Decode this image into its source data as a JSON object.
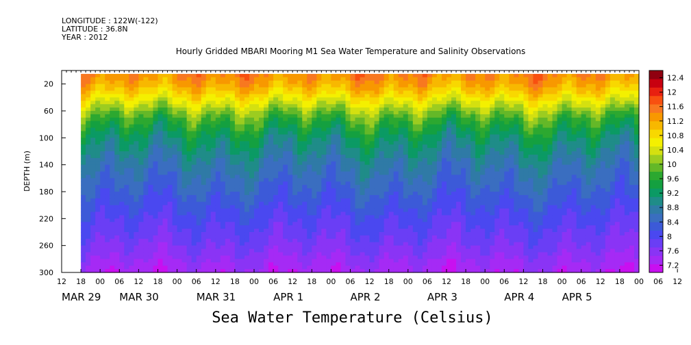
{
  "header": {
    "longitude": "LONGITUDE : 122W(-122)",
    "latitude": "LATITUDE : 36.8N",
    "year": "YEAR : 2012"
  },
  "chart_data": {
    "type": "heatmap",
    "title": "Hourly Gridded MBARI Mooring M1 Sea Water Temperature and Salinity Observations",
    "xlabel": "Sea Water Temperature (Celsius)",
    "ylabel": "DEPTH (m)",
    "ylim": [
      300,
      0
    ],
    "y_ticks": [
      20,
      60,
      100,
      140,
      180,
      220,
      260,
      300
    ],
    "x_range_hours": [
      0,
      180
    ],
    "x_hour_ticks": [
      "12",
      "18",
      "00",
      "06",
      "12",
      "18",
      "00",
      "06",
      "12",
      "18",
      "00",
      "06",
      "12",
      "18",
      "00",
      "06",
      "12",
      "18",
      "00",
      "06",
      "12",
      "18",
      "00",
      "06",
      "12",
      "18",
      "00",
      "06",
      "12",
      "18",
      "00",
      "06",
      "12"
    ],
    "x_day_labels": [
      {
        "label": "MAR 29",
        "hour": 0
      },
      {
        "label": "MAR 30",
        "hour": 18
      },
      {
        "label": "MAR 31",
        "hour": 42
      },
      {
        "label": "APR  1",
        "hour": 66
      },
      {
        "label": "APR  2",
        "hour": 90
      },
      {
        "label": "APR  3",
        "hour": 114
      },
      {
        "label": "APR  4",
        "hour": 138
      },
      {
        "label": "APR  5",
        "hour": 156
      }
    ],
    "data_start_hour": 6,
    "colorbar": {
      "levels": [
        7.2,
        7.6,
        8,
        8.4,
        8.8,
        9.2,
        9.6,
        10,
        10.4,
        10.8,
        11.2,
        11.6,
        12,
        12.4
      ],
      "colors": [
        "#c810f0",
        "#a52af5",
        "#8a34f5",
        "#6a3ef5",
        "#4a48f0",
        "#3c5ad8",
        "#3a6ec0",
        "#2f7aa6",
        "#1f8c88",
        "#0b9a64",
        "#14a040",
        "#2ca830",
        "#64b828",
        "#9ccc20",
        "#d4e010",
        "#f4f000",
        "#f8d800",
        "#f8b800",
        "#f89800",
        "#f87820",
        "#f85010",
        "#e82010",
        "#c80010",
        "#900010"
      ]
    },
    "depth_profile_degC": [
      {
        "depth": 10,
        "value": 11.4
      },
      {
        "depth": 30,
        "value": 11.0
      },
      {
        "depth": 50,
        "value": 10.4
      },
      {
        "depth": 70,
        "value": 9.8
      },
      {
        "depth": 100,
        "value": 9.2
      },
      {
        "depth": 140,
        "value": 8.7
      },
      {
        "depth": 180,
        "value": 8.35
      },
      {
        "depth": 220,
        "value": 8.0
      },
      {
        "depth": 260,
        "value": 7.7
      },
      {
        "depth": 300,
        "value": 7.3
      }
    ]
  }
}
